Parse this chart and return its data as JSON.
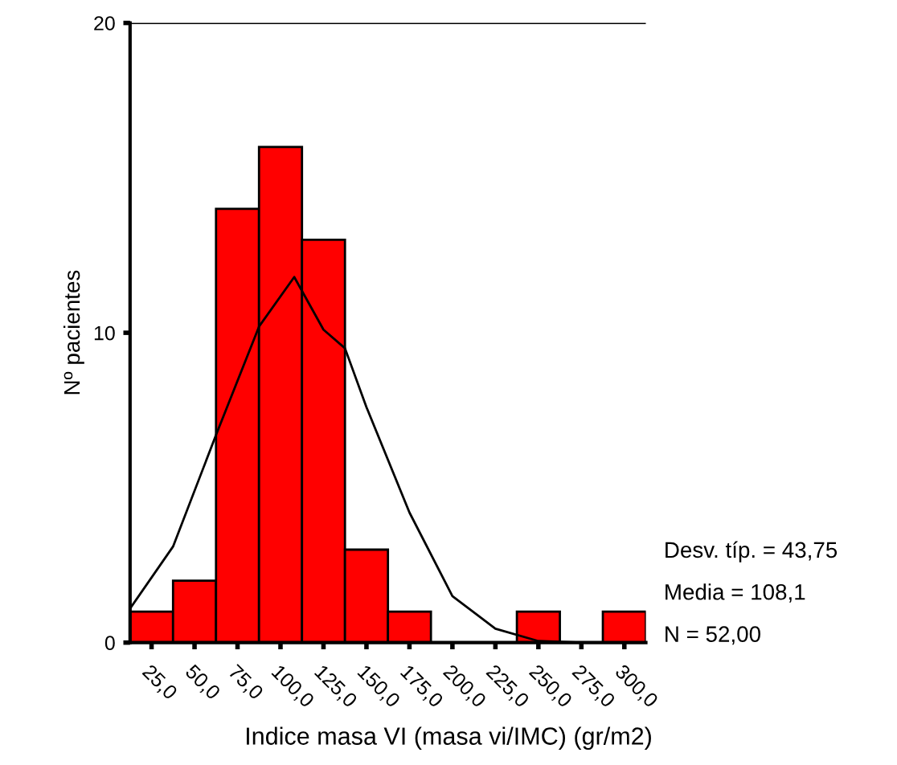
{
  "chart_data": {
    "type": "histogram",
    "xlabel": "Indice masa VI (masa vi/IMC) (gr/m2)",
    "ylabel": "Nº pacientes",
    "bins": [
      12.5,
      37.5,
      62.5,
      87.5,
      112.5,
      137.5,
      162.5,
      187.5,
      212.5,
      237.5,
      262.5,
      287.5,
      312.5
    ],
    "values": [
      1,
      2,
      14,
      16,
      13,
      3,
      1,
      0,
      0,
      1,
      0,
      1
    ],
    "color": "#ff0000",
    "series": [
      {
        "type": "line",
        "color": "#000000",
        "x": [
          12.5,
          37.5,
          62.5,
          87.5,
          108,
          125,
          137.5,
          150,
          175,
          200,
          225,
          250,
          275,
          312.5
        ],
        "values": [
          1.1,
          3.1,
          6.7,
          10.2,
          11.8,
          10.1,
          9.5,
          7.6,
          4.2,
          1.5,
          0.45,
          0.05,
          0,
          0
        ]
      }
    ],
    "xlim": [
      12.5,
      312.5
    ],
    "ylim": [
      0,
      20
    ],
    "xticks": [
      {
        "value": 25,
        "label": "25,0"
      },
      {
        "value": 50,
        "label": "50,0"
      },
      {
        "value": 75,
        "label": "75,0"
      },
      {
        "value": 100,
        "label": "100,0"
      },
      {
        "value": 125,
        "label": "125,0"
      },
      {
        "value": 150,
        "label": "150,0"
      },
      {
        "value": 175,
        "label": "175,0"
      },
      {
        "value": 200,
        "label": "200,0"
      },
      {
        "value": 225,
        "label": "225,0"
      },
      {
        "value": 250,
        "label": "250,0"
      },
      {
        "value": 275,
        "label": "275,0"
      },
      {
        "value": 300,
        "label": "300,0"
      }
    ],
    "yticks": [
      0,
      10,
      20
    ],
    "grid": false,
    "legend": false,
    "annotations": [
      "Desv. típ. = 43,75",
      "Media = 108,1",
      "N = 52,00"
    ]
  }
}
